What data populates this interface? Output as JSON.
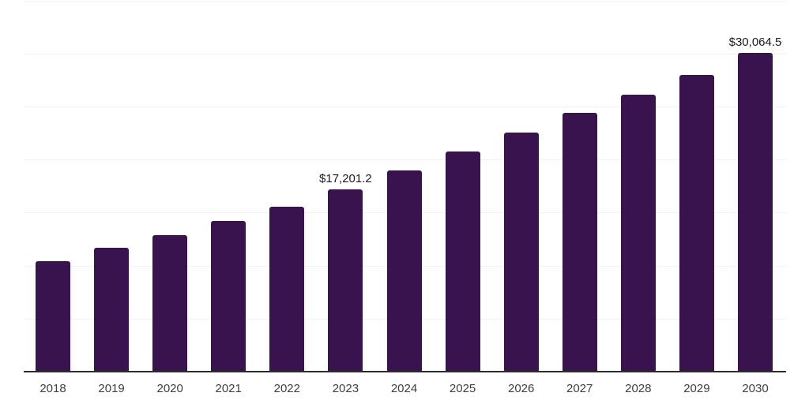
{
  "chart_data": {
    "type": "bar",
    "title": "",
    "xlabel": "",
    "ylabel": "",
    "categories": [
      "2018",
      "2019",
      "2020",
      "2021",
      "2022",
      "2023",
      "2024",
      "2025",
      "2026",
      "2027",
      "2028",
      "2029",
      "2030"
    ],
    "values": [
      10430,
      11660,
      12900,
      14210,
      15580,
      17201.2,
      18980,
      20740,
      22530,
      24390,
      26120,
      27960,
      30064.5
    ],
    "data_labels": [
      null,
      null,
      null,
      null,
      null,
      "$17,201.2",
      null,
      null,
      null,
      null,
      null,
      null,
      "$30,064.5"
    ],
    "ylim": [
      0,
      35000
    ],
    "grid_step": 5000,
    "grid": true,
    "legend": false,
    "bar_color": "#38134E",
    "axis_color": "#2d2d2d",
    "gridline_color": "#f2f2f2",
    "tick_label_color": "#3e3e3e",
    "data_label_color": "#1a1a1a"
  }
}
